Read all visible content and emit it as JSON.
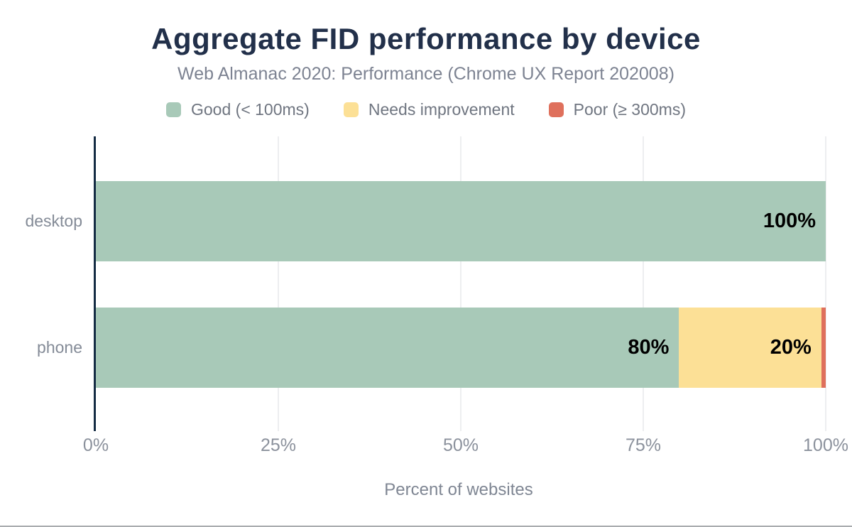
{
  "chart_data": {
    "type": "bar",
    "variant": "horizontal-stacked",
    "title": "Aggregate FID performance by device",
    "subtitle": "Web Almanac 2020: Performance (Chrome UX Report 202008)",
    "xlabel": "Percent of websites",
    "categories": [
      "desktop",
      "phone"
    ],
    "series": [
      {
        "name": "Good (< 100ms)",
        "color": "#a8c9b8",
        "values": [
          100,
          79.9
        ],
        "labels": [
          "100%",
          "80%"
        ]
      },
      {
        "name": "Needs improvement",
        "color": "#fce096",
        "values": [
          0,
          19.5
        ],
        "labels": [
          "",
          "20%"
        ]
      },
      {
        "name": "Poor (≥ 300ms)",
        "color": "#df705c",
        "values": [
          0,
          0.6
        ],
        "labels": [
          "",
          ""
        ]
      }
    ],
    "x_ticks": [
      {
        "label": "0%",
        "value": 0
      },
      {
        "label": "25%",
        "value": 25
      },
      {
        "label": "50%",
        "value": 50
      },
      {
        "label": "75%",
        "value": 75
      },
      {
        "label": "100%",
        "value": 100
      }
    ],
    "xlim": [
      0,
      100
    ],
    "grid": true,
    "legend_position": "top"
  },
  "style_colors": {
    "title": "#22304a",
    "axis_line": "#152c44",
    "gridline": "#edeef0",
    "tick_text": "#8b919c",
    "bar_value_text": "#000000"
  }
}
